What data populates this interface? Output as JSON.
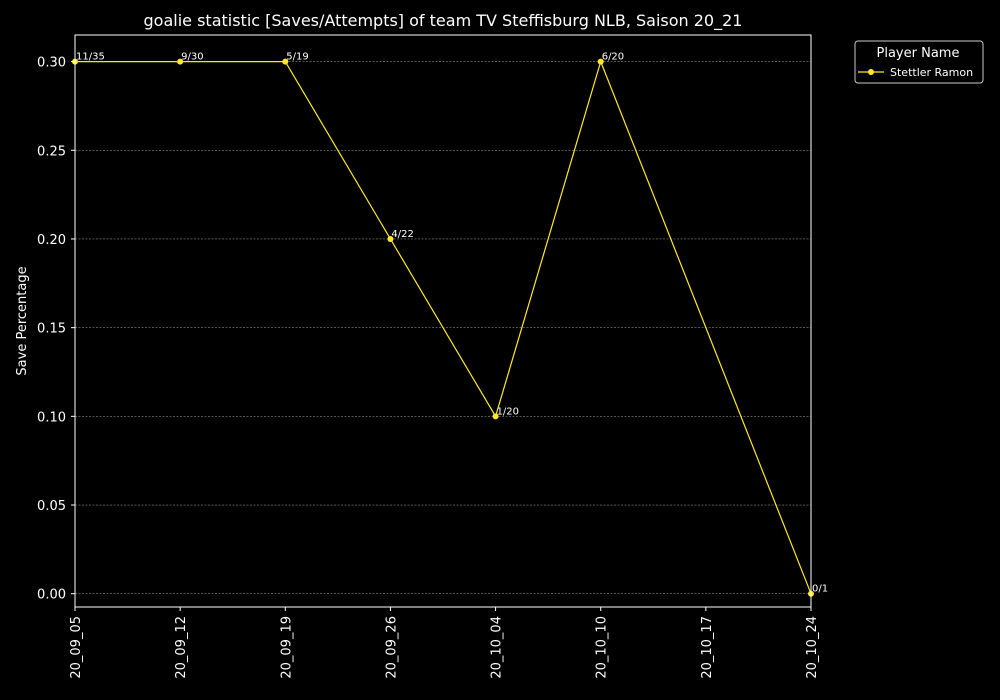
{
  "chart_data": {
    "type": "line",
    "title": "goalie statistic [Saves/Attempts] of team TV Steffisburg NLB, Saison 20_21",
    "xlabel": "",
    "ylabel": "Save Percentage",
    "x_ticks": [
      "20_09_05",
      "20_09_12",
      "20_09_19",
      "20_09_26",
      "20_10_04",
      "20_10_10",
      "20_10_17",
      "20_10_24"
    ],
    "y_ticks": [
      "0.00",
      "0.05",
      "0.10",
      "0.15",
      "0.20",
      "0.25",
      "0.30"
    ],
    "ylim": [
      -0.0075,
      0.315
    ],
    "grid": true,
    "legend": {
      "title": "Player Name",
      "placement": "outside-top-right"
    },
    "series": [
      {
        "name": "Stettler Ramon",
        "color": "#ffe927",
        "points": [
          {
            "x": "20_09_05",
            "y": 0.3,
            "label": "11/35"
          },
          {
            "x": "20_09_12",
            "y": 0.3,
            "label": "9/30"
          },
          {
            "x": "20_09_19",
            "y": 0.3,
            "label": "5/19"
          },
          {
            "x": "20_09_26",
            "y": 0.2,
            "label": "4/22"
          },
          {
            "x": "20_10_04",
            "y": 0.1,
            "label": "1/20"
          },
          {
            "x": "20_10_10",
            "y": 0.3,
            "label": "6/20"
          },
          {
            "x": "20_10_24",
            "y": 0.0,
            "label": "0/1"
          }
        ]
      }
    ]
  }
}
